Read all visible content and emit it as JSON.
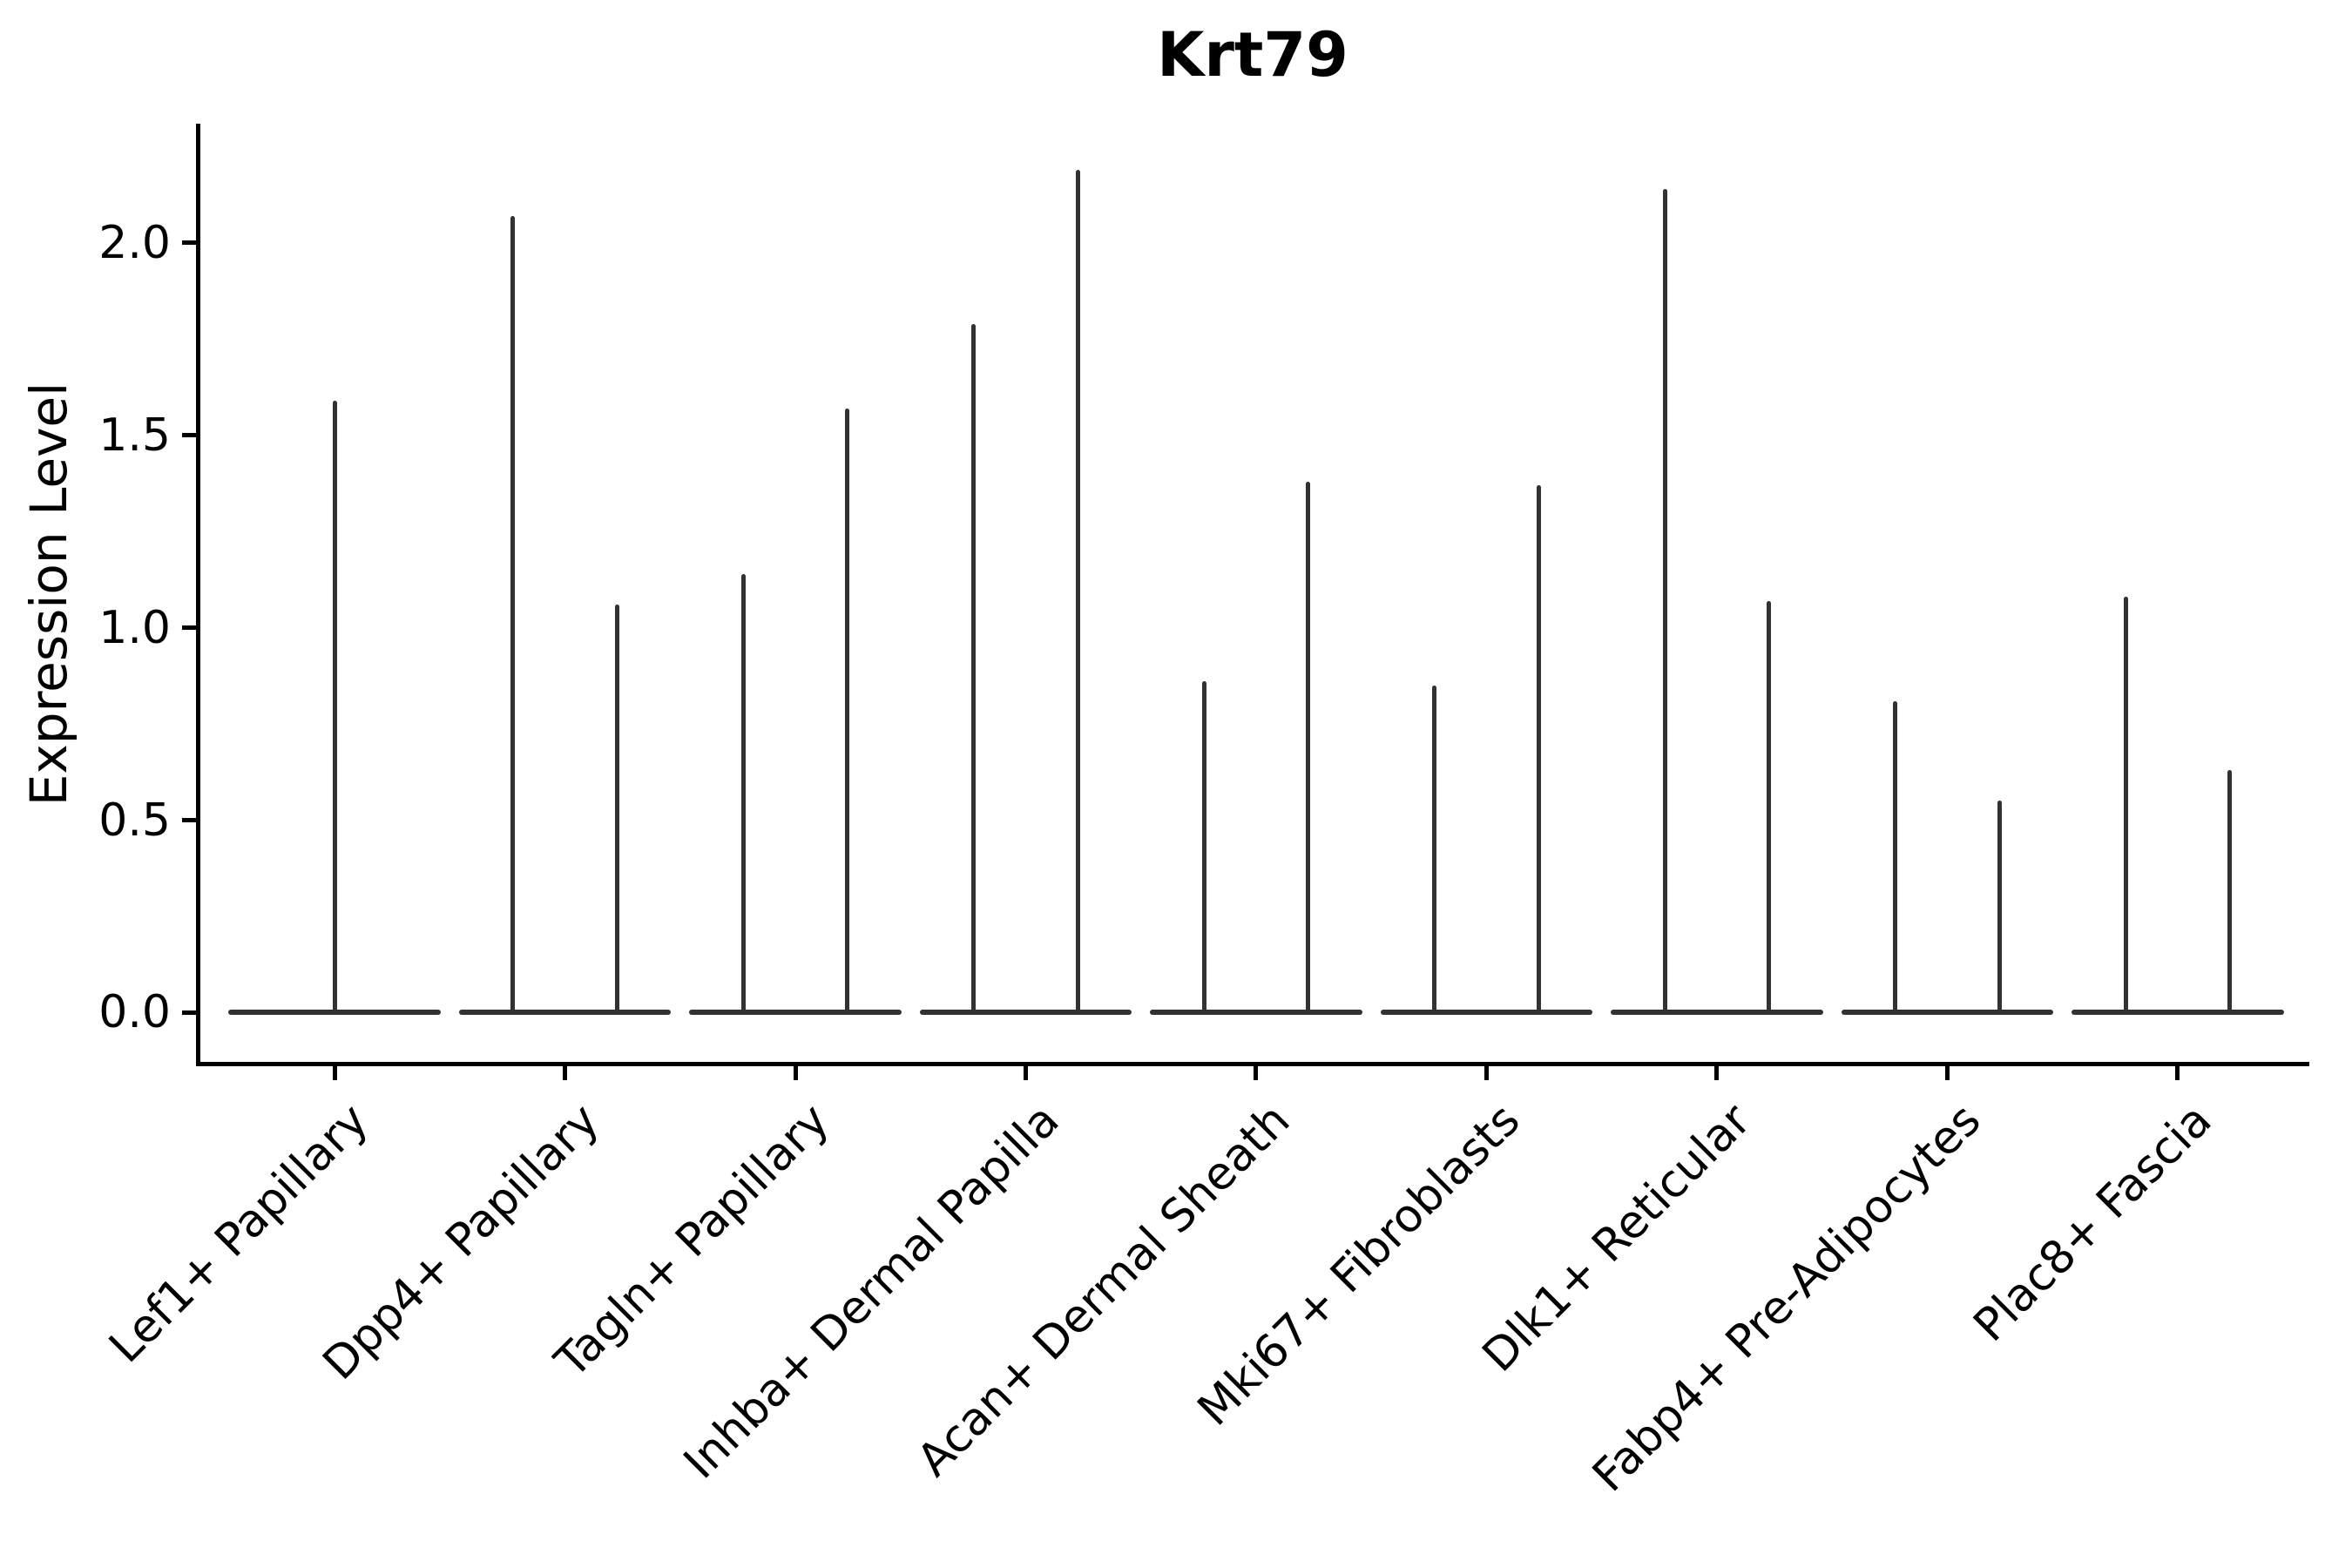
{
  "figure": {
    "title": "Krt79",
    "ylabel": "Expression Level"
  },
  "colors": {
    "violin_line": "#323232",
    "axis": "#000000",
    "text": "#000000",
    "background": "#ffffff"
  },
  "chart_data": {
    "type": "violin",
    "title": "Krt79",
    "xlabel": "",
    "ylabel": "Expression Level",
    "grid": false,
    "legend": "none",
    "yticks": [
      0.0,
      0.5,
      1.0,
      1.5,
      2.0
    ],
    "ytick_labels": [
      "0.0",
      "0.5",
      "1.0",
      "1.5",
      "2.0"
    ],
    "ylim": [
      -0.135,
      2.31
    ],
    "xlim": [
      -0.59,
      8.56
    ],
    "violin_halfwidth": 0.46,
    "baseline_value": 0.0,
    "categories": [
      "Lef1+ Papillary",
      "Dpp4+ Papillary",
      "Tagln+ Papillary",
      "Inhba+ Dermal Papilla",
      "Acan+ Dermal Sheath",
      "Mki67+ Fibroblasts",
      "Dlk1+ Reticular",
      "Fabp4+ Pre-Adipocytes",
      "Plac8+ Fascia"
    ],
    "series": [
      {
        "category": "Lef1+ Papillary",
        "x": 0,
        "spikes": [
          {
            "offset": 0.0,
            "min": 0,
            "max": 1.59
          }
        ]
      },
      {
        "category": "Dpp4+ Papillary",
        "x": 1,
        "spikes": [
          {
            "offset": -0.226,
            "min": 0,
            "max": 2.07
          },
          {
            "offset": 0.226,
            "min": 0,
            "max": 1.06
          }
        ]
      },
      {
        "category": "Tagln+ Papillary",
        "x": 2,
        "spikes": [
          {
            "offset": -0.226,
            "min": 0,
            "max": 1.14
          },
          {
            "offset": 0.226,
            "min": 0,
            "max": 1.57
          }
        ]
      },
      {
        "category": "Inhba+ Dermal Papilla",
        "x": 3,
        "spikes": [
          {
            "offset": -0.226,
            "min": 0,
            "max": 1.79
          },
          {
            "offset": 0.226,
            "min": 0,
            "max": 2.19
          }
        ]
      },
      {
        "category": "Acan+ Dermal Sheath",
        "x": 4,
        "spikes": [
          {
            "offset": -0.226,
            "min": 0,
            "max": 0.86
          },
          {
            "offset": 0.226,
            "min": 0,
            "max": 1.38
          }
        ]
      },
      {
        "category": "Mki67+ Fibroblasts",
        "x": 5,
        "spikes": [
          {
            "offset": -0.226,
            "min": 0,
            "max": 0.85
          },
          {
            "offset": 0.226,
            "min": 0,
            "max": 1.37
          }
        ]
      },
      {
        "category": "Dlk1+ Reticular",
        "x": 6,
        "spikes": [
          {
            "offset": -0.226,
            "min": 0,
            "max": 2.14
          },
          {
            "offset": 0.226,
            "min": 0,
            "max": 1.07
          }
        ]
      },
      {
        "category": "Fabp4+ Pre-Adipocytes",
        "x": 7,
        "spikes": [
          {
            "offset": -0.226,
            "min": 0,
            "max": 0.81
          },
          {
            "offset": 0.226,
            "min": 0,
            "max": 0.55
          }
        ]
      },
      {
        "category": "Plac8+ Fascia",
        "x": 8,
        "spikes": [
          {
            "offset": -0.226,
            "min": 0,
            "max": 1.08
          },
          {
            "offset": 0.226,
            "min": 0,
            "max": 0.63
          }
        ]
      }
    ]
  }
}
